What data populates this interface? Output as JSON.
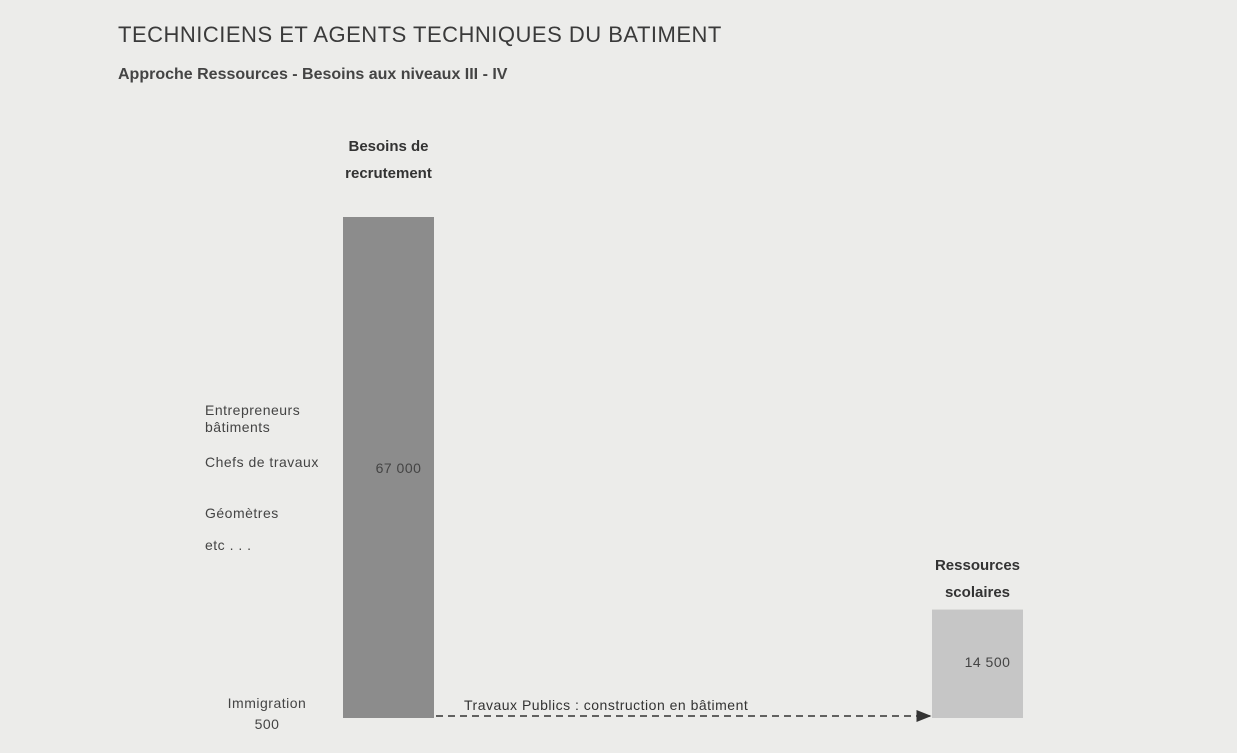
{
  "chart_data": {
    "type": "bar",
    "title": "TECHNICIENS ET AGENTS TECHNIQUES DU BATIMENT",
    "subtitle": "Approche Ressources - Besoins aux niveaux III - IV",
    "categories": [
      "Besoins de recrutement",
      "Ressources scolaires"
    ],
    "values": [
      67000,
      14500
    ],
    "value_labels": [
      "67 000",
      "14 500"
    ],
    "colors": [
      "#8c8c8c",
      "#c6c6c6"
    ],
    "segment": {
      "name": "Immigration",
      "value": 500,
      "color": "#555555"
    },
    "side_labels": [
      "Entrepreneurs bâtiments",
      "Chefs de travaux",
      "Géomètres",
      "etc . . ."
    ],
    "arrow_label": "Travaux Publics : construction en bâtiment"
  }
}
